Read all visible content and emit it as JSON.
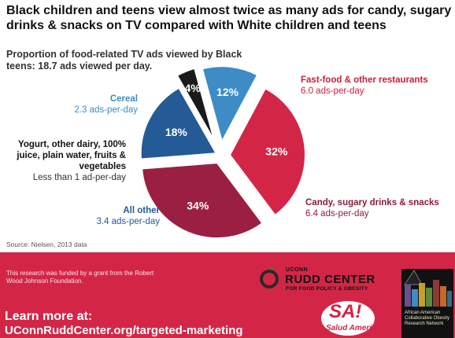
{
  "headline": "Black children and teens view almost twice as many ads for candy, sugary drinks & snacks on TV compared with White children and teens",
  "subtitle": "Proportion of food-related TV ads viewed by Black teens: 18.7 ads viewed per day.",
  "chart_data": {
    "type": "pie",
    "title": "Proportion of food-related TV ads viewed by Black teens: 18.7 ads viewed per day.",
    "slices": [
      {
        "name": "Fast-food & other restaurants",
        "value": 32,
        "label": "32%",
        "detail": "6.0 ads-per-day",
        "color": "#d32647"
      },
      {
        "name": "Candy, sugary drinks & snacks",
        "value": 34,
        "label": "34%",
        "detail": "6.4 ads-per-day",
        "color": "#9b1f43"
      },
      {
        "name": "All other",
        "value": 18,
        "label": "18%",
        "detail": "3.4 ads-per-day",
        "color": "#245a96"
      },
      {
        "name": "Yogurt, other dairy, 100% juice, plain water, fruits & vegetables",
        "value": 4,
        "label": "4%",
        "detail": "Less than 1 ad-per-day",
        "color": "#1a1a1a"
      },
      {
        "name": "Cereal",
        "value": 12,
        "label": "12%",
        "detail": "2.3 ads-per-day",
        "color": "#3d8cc6"
      }
    ]
  },
  "labels": {
    "ff_title": "Fast-food & other restaurants",
    "ff_sub": "6.0 ads-per-day",
    "candy_title": "Candy, sugary drinks & snacks",
    "candy_sub": "6.4 ads-per-day",
    "cereal_title": "Cereal",
    "cereal_sub": "2.3 ads-per-day",
    "yog_title": "Yogurt, other dairy, 100% juice, plain water, fruits & vegetables",
    "yog_sub": "Less than 1 ad-per-day",
    "other_title": "All other",
    "other_sub": "3.4 ads-per-day"
  },
  "source": "Source: Nielsen, 2013 data",
  "footer": {
    "funded": "This research was funded by a grant from the Robert Wood Johnson Foundation.",
    "learn": "Learn more at:",
    "url": "UConnRuddCenter.org/targeted-marketing",
    "uconn": "UCONN",
    "rudd": "RUDD CENTER",
    "rudd_sub": "FOR FOOD POLICY & OBESITY",
    "sa": "SA!",
    "sa_sub": "Salud America!",
    "aacorn": "African American Collaborative Obesity Research Network"
  },
  "colors": {
    "brand_red": "#d32647",
    "candy_red": "#9b1f43",
    "dark_blue": "#245a96",
    "light_blue": "#3d8cc6",
    "black": "#1a1a1a"
  }
}
